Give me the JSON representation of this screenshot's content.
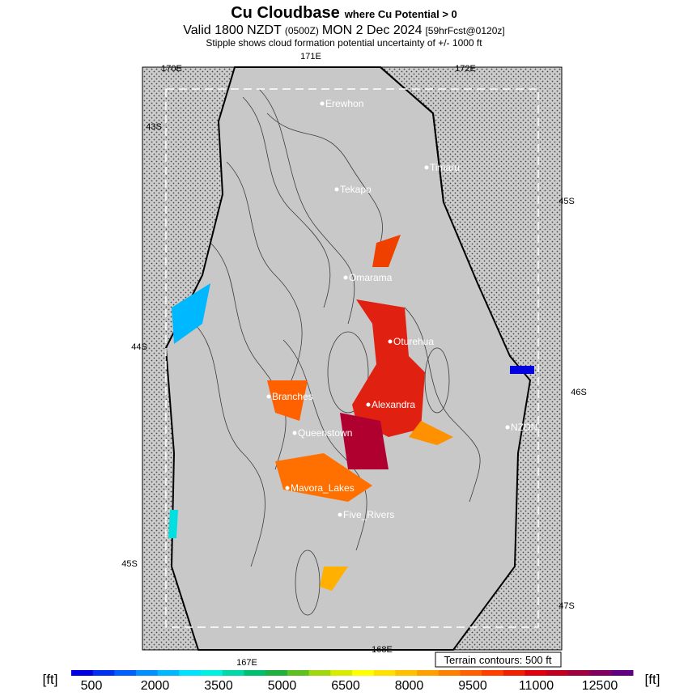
{
  "header": {
    "title": "Cu Cloudbase",
    "title_note": "where Cu Potential > 0",
    "valid": "Valid 1800 NZDT",
    "utc": "(0500Z)",
    "date": "MON 2 Dec 2024",
    "forecast": "[59hrFcst@0120z]",
    "subtitle": "Stipple shows cloud formation potential uncertainty of +/- 1000 ft"
  },
  "grid_labels": [
    "170E",
    "171E",
    "172E",
    "43S",
    "45S",
    "44S",
    "46S",
    "45S",
    "47S",
    "167E",
    "168E"
  ],
  "places": [
    "Erewhon",
    "Timaru",
    "Tekapo",
    "Omarama",
    "Oturehua",
    "Branches",
    "Alexandra",
    "Queenstown",
    "NZDN",
    "Mavora_Lakes",
    "Five_Rivers"
  ],
  "terrain_note": "Terrain contours: 500 ft",
  "colorbar": {
    "unit_left": "[ft]",
    "unit_right": "[ft]",
    "ticks": [
      "500",
      "2000",
      "3500",
      "5000",
      "6500",
      "8000",
      "9500",
      "11000",
      "12500"
    ],
    "colors": [
      "#0000e0",
      "#0030f0",
      "#0060ff",
      "#0090ff",
      "#00b8ff",
      "#00e0ff",
      "#00f0e0",
      "#00d8a8",
      "#00c070",
      "#20b040",
      "#60c020",
      "#a0d810",
      "#d8ec00",
      "#ffff00",
      "#ffe000",
      "#ffc000",
      "#ffa000",
      "#ff8000",
      "#ff6000",
      "#ff4000",
      "#f02000",
      "#e00010",
      "#c00020",
      "#a00040",
      "#800060",
      "#600080"
    ]
  }
}
